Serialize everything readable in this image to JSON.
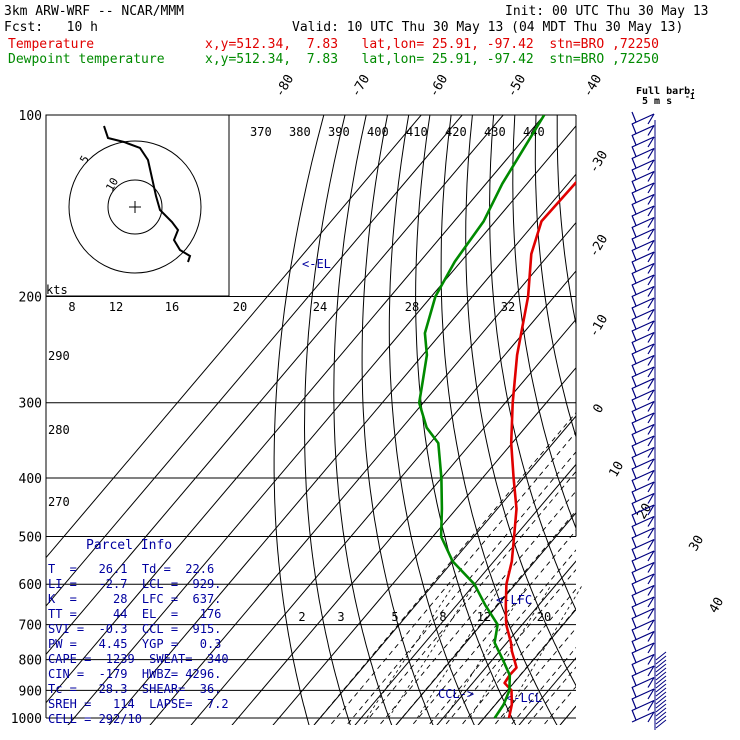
{
  "header": {
    "model": "3km ARW-WRF -- NCAR/MMM",
    "init": "Init: 00 UTC Thu 30 May 13",
    "fcst": "Fcst:   10 h",
    "valid": "Valid: 10 UTC Thu 30 May 13 (04 MDT Thu 30 May 13)",
    "temp_label": "Temperature",
    "temp_info": "x,y=512.34,  7.83   lat,lon= 25.91, -97.42  stn=BRO ,72250",
    "dew_label": "Dewpoint temperature",
    "dew_info": "x,y=512.34,  7.83   lat,lon= 25.91, -97.42  stn=BRO ,72250"
  },
  "barb_legend": {
    "line1": "Full barb:",
    "line2": "5 m s",
    "sup": "-1"
  },
  "colors": {
    "temperature": "#e00000",
    "dewpoint": "#008a00",
    "parcel": "#0000a0",
    "barb": "#000080"
  },
  "parcel_info": {
    "title": "Parcel Info",
    "rows": [
      "T  =   26.1  Td =  22.6",
      "LI =   -2.7  LCL =  929.",
      "K  =     28  LFC =  637.",
      "TT =     44  EL  =   176",
      "SVI =  -0.3  CCL =  915.",
      "PW =   4.45  YGP =   0.3",
      "CAPE =  1239  SWEAT=  340",
      "CIN =  -179  HWBZ= 4296.",
      "Tc =   28.3  SHEAR=  36.",
      "SREH =   114  LAPSE=  7.2",
      "CELL = 292/10"
    ]
  },
  "chart_data": {
    "type": "line",
    "title": "",
    "xlabel": "",
    "ylabel": "",
    "y_scale": "log-pressure",
    "ylim": [
      1000,
      100
    ],
    "pressure_levels": [
      100,
      200,
      300,
      400,
      500,
      600,
      700,
      800,
      900,
      1000
    ],
    "pressure_labels": [
      "100",
      "200",
      "300",
      "400",
      "500",
      "600",
      "700",
      "800",
      "900",
      "1000"
    ],
    "isotherm_labels": [
      "-80",
      "-70",
      "-60",
      "-50",
      "-40",
      "-30",
      "-20",
      "-10",
      "0",
      "10",
      "20",
      "30",
      "40"
    ],
    "theta_labels": [
      "290",
      "280",
      "270"
    ],
    "theta_e_labels": [
      "370",
      "380",
      "390",
      "400",
      "410",
      "420",
      "430",
      "440"
    ],
    "mixing_ratio_labels": [
      "2",
      "3",
      "5",
      "8",
      "12",
      "20"
    ],
    "hodograph": {
      "units_label": "kts",
      "ring_labels": [
        "8",
        "12",
        "16",
        "20",
        "24",
        "28",
        "32"
      ],
      "circle_labels": [
        "5",
        "10"
      ]
    },
    "annotations": [
      "<-EL",
      "<-LFC",
      "<-LCL",
      "CCL->"
    ],
    "series": [
      {
        "name": "Temperature",
        "values": [
          [
            100,
            -66.5
          ],
          [
            130,
            -68.3
          ],
          [
            150,
            -68.7
          ],
          [
            170,
            -64.4
          ],
          [
            200,
            -56.4
          ],
          [
            250,
            -47.0
          ],
          [
            300,
            -38.2
          ],
          [
            350,
            -30.2
          ],
          [
            400,
            -22.4
          ],
          [
            450,
            -15.3
          ],
          [
            500,
            -10.2
          ],
          [
            550,
            -5.6
          ],
          [
            600,
            -2.2
          ],
          [
            650,
            2.0
          ],
          [
            700,
            6.1
          ],
          [
            750,
            11.0
          ],
          [
            775,
            13.0
          ],
          [
            800,
            15.3
          ],
          [
            825,
            17.5
          ],
          [
            850,
            17.4
          ],
          [
            875,
            17.8
          ],
          [
            900,
            21.0
          ],
          [
            950,
            24.0
          ],
          [
            1000,
            26.1
          ]
        ]
      },
      {
        "name": "Dewpoint temperature",
        "values": [
          [
            100,
            -90.0
          ],
          [
            130,
            -86.0
          ],
          [
            150,
            -82.8
          ],
          [
            175,
            -81.5
          ],
          [
            200,
            -79.0
          ],
          [
            230,
            -74.0
          ],
          [
            250,
            -69.0
          ],
          [
            280,
            -64.0
          ],
          [
            300,
            -61.0
          ],
          [
            330,
            -54.0
          ],
          [
            350,
            -48.0
          ],
          [
            400,
            -40.0
          ],
          [
            450,
            -33.5
          ],
          [
            500,
            -28.0
          ],
          [
            550,
            -20.0
          ],
          [
            600,
            -10.0
          ],
          [
            650,
            -3.0
          ],
          [
            700,
            4.0
          ],
          [
            750,
            7.0
          ],
          [
            800,
            12.5
          ],
          [
            850,
            17.5
          ],
          [
            900,
            20.5
          ],
          [
            950,
            22.0
          ],
          [
            1000,
            22.6
          ]
        ]
      }
    ]
  }
}
